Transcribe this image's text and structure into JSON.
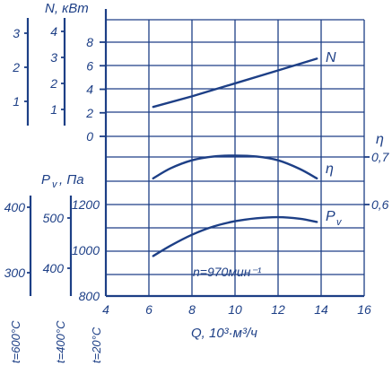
{
  "chart_data": {
    "type": "line",
    "title": "",
    "xlabel": "Q, 10³·м³/ч",
    "x_ticks": [
      "4",
      "6",
      "8",
      "10",
      "12",
      "14",
      "16"
    ],
    "xlim": [
      4,
      16
    ],
    "annotation": "n=970мин⁻¹",
    "series": [
      {
        "name": "N",
        "axis": "N, кВт",
        "x": [
          6.2,
          8,
          10,
          12,
          13.8
        ],
        "y": [
          2.5,
          3.4,
          4.5,
          5.6,
          6.6
        ]
      },
      {
        "name": "η",
        "axis": "η",
        "x": [
          6.2,
          7,
          8,
          9,
          10,
          11,
          12,
          13,
          13.8
        ],
        "y": [
          0.655,
          0.676,
          0.693,
          0.701,
          0.703,
          0.701,
          0.693,
          0.675,
          0.655
        ]
      },
      {
        "name": "Pv",
        "axis": "Pv, Па",
        "x": [
          6.2,
          7,
          8,
          9,
          10,
          11,
          12,
          13,
          13.8
        ],
        "y": [
          975,
          1020,
          1068,
          1104,
          1127,
          1140,
          1145,
          1138,
          1124
        ]
      }
    ],
    "axes": {
      "N": {
        "label": "N, кВт",
        "main_ticks": [
          "8",
          "6",
          "4",
          "2",
          "0"
        ],
        "main_range": [
          0,
          8
        ],
        "aux_scales": [
          {
            "ticks": [
              "4",
              "3",
              "2",
              "1"
            ]
          },
          {
            "ticks": [
              "3",
              "2",
              "1"
            ]
          }
        ]
      },
      "eta": {
        "label": "η",
        "ticks": [
          "0,7",
          "0,6"
        ],
        "range": [
          0.6,
          0.7
        ]
      },
      "Pv": {
        "label": "Pv, Па",
        "main_ticks": [
          "1200",
          "1000",
          "800"
        ],
        "main_range": [
          800,
          1200
        ],
        "temp_scales": [
          {
            "temp_label": "t=20°C",
            "ticks": []
          },
          {
            "temp_label": "t=400°C",
            "ticks": [
              "500",
              "400"
            ]
          },
          {
            "temp_label": "t=600°C",
            "ticks": [
              "400",
              "300"
            ]
          }
        ]
      }
    }
  }
}
